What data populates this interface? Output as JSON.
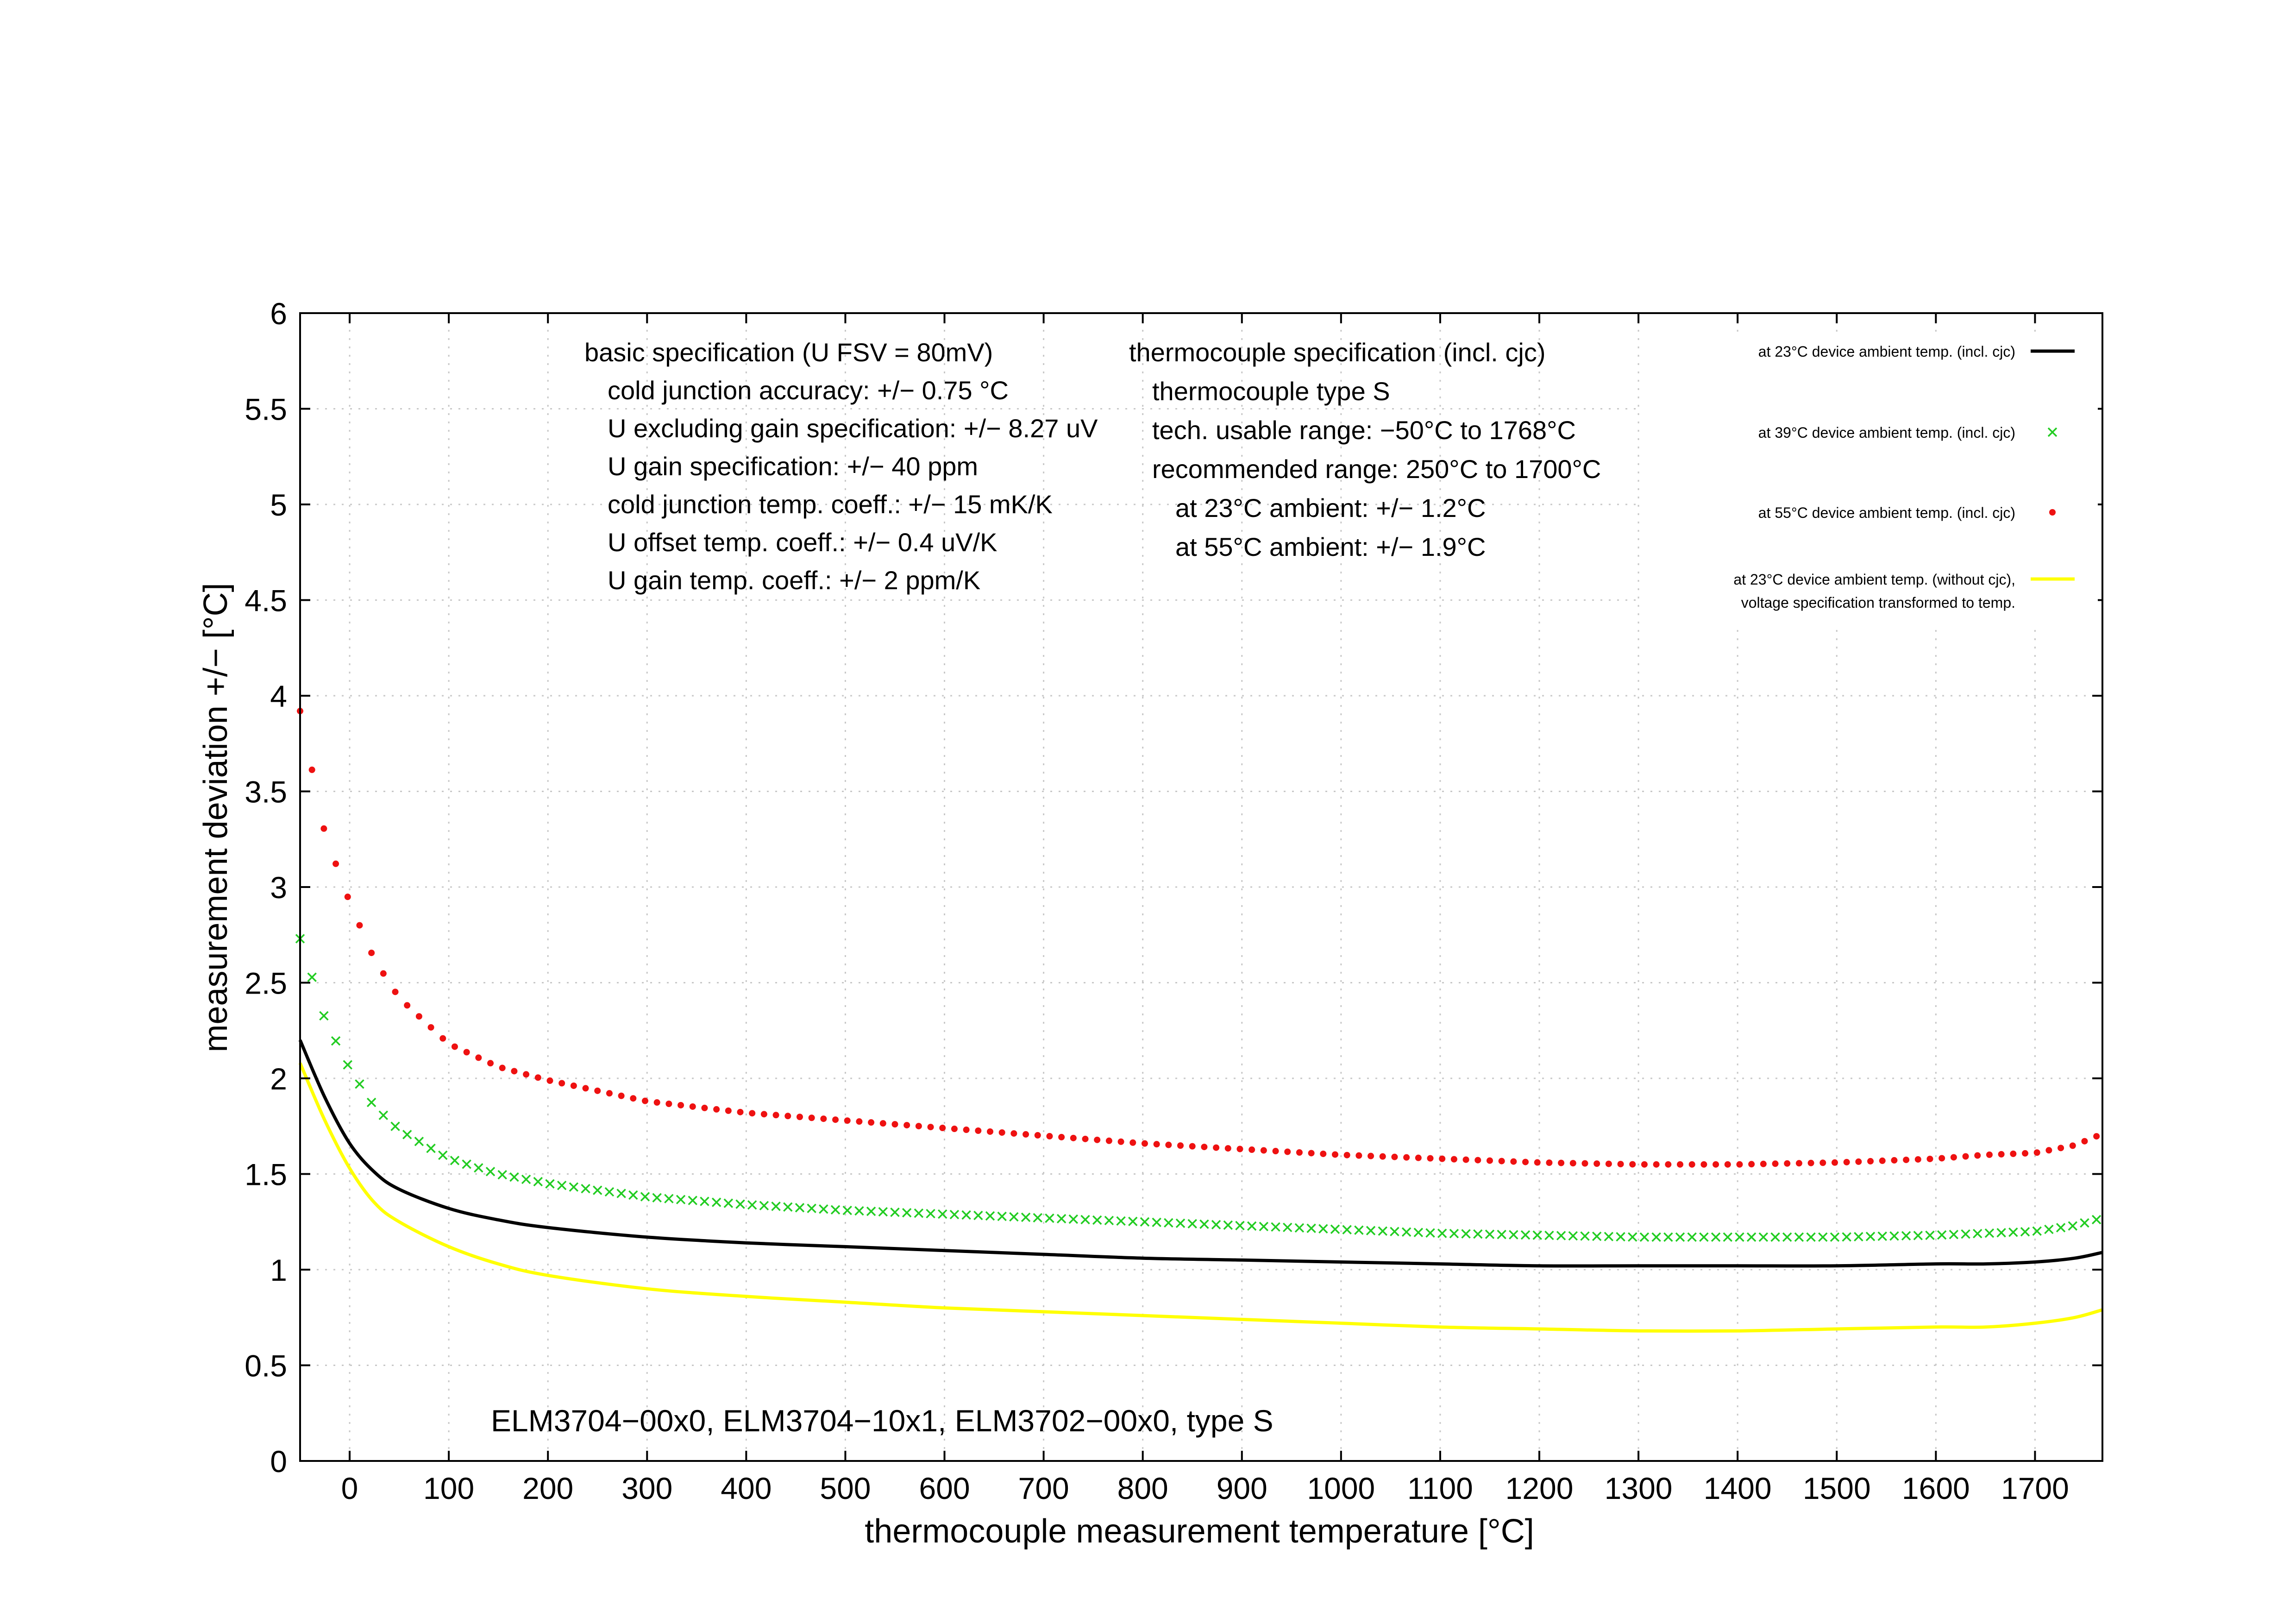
{
  "chart_data": {
    "type": "line",
    "xlabel": "thermocouple measurement temperature [°C]",
    "ylabel": "measurement deviation +/− [°C]",
    "xlim": [
      -50,
      1768
    ],
    "ylim": [
      0,
      6
    ],
    "xticks": [
      0,
      100,
      200,
      300,
      400,
      500,
      600,
      700,
      800,
      900,
      1000,
      1100,
      1200,
      1300,
      1400,
      1500,
      1600,
      1700
    ],
    "yticks": [
      0,
      0.5,
      1,
      1.5,
      2,
      2.5,
      3,
      3.5,
      4,
      4.5,
      5,
      5.5,
      6
    ],
    "ytick_labels": [
      "0",
      "0.5",
      "1",
      "1.5",
      "2",
      "2.5",
      "3",
      "3.5",
      "4",
      "4.5",
      "5",
      "5.5",
      "6"
    ],
    "grid": true,
    "legend_position": "top-right",
    "x": [
      -50,
      -25,
      0,
      25,
      50,
      100,
      150,
      200,
      300,
      400,
      500,
      600,
      700,
      800,
      900,
      1000,
      1100,
      1200,
      1300,
      1400,
      1500,
      1600,
      1650,
      1700,
      1740,
      1768
    ],
    "series": [
      {
        "name": "at 23°C device ambient temp. (incl. cjc)",
        "style": "line",
        "color": "#000000",
        "values": [
          2.2,
          1.9,
          1.66,
          1.51,
          1.42,
          1.32,
          1.26,
          1.22,
          1.17,
          1.14,
          1.12,
          1.1,
          1.08,
          1.06,
          1.05,
          1.04,
          1.03,
          1.02,
          1.02,
          1.02,
          1.02,
          1.03,
          1.03,
          1.04,
          1.06,
          1.09
        ]
      },
      {
        "name": "at 39°C device ambient temp. (incl. cjc)",
        "style": "cross",
        "color": "#22cc22",
        "values": [
          2.73,
          2.31,
          2.05,
          1.85,
          1.73,
          1.58,
          1.5,
          1.45,
          1.38,
          1.34,
          1.31,
          1.29,
          1.27,
          1.25,
          1.23,
          1.21,
          1.19,
          1.18,
          1.17,
          1.17,
          1.17,
          1.18,
          1.19,
          1.2,
          1.23,
          1.27
        ]
      },
      {
        "name": "at 55°C device ambient temp. (incl. cjc)",
        "style": "dot",
        "color": "#ee1111",
        "values": [
          3.92,
          3.28,
          2.92,
          2.62,
          2.42,
          2.18,
          2.06,
          1.99,
          1.88,
          1.82,
          1.78,
          1.74,
          1.7,
          1.66,
          1.63,
          1.6,
          1.58,
          1.56,
          1.55,
          1.55,
          1.56,
          1.58,
          1.6,
          1.61,
          1.65,
          1.71
        ]
      },
      {
        "name": "at 23°C device ambient temp. (without cjc), voltage specification transformed to temp.",
        "style": "line",
        "color": "#ffff00",
        "values": [
          2.08,
          1.78,
          1.53,
          1.35,
          1.25,
          1.12,
          1.03,
          0.97,
          0.9,
          0.86,
          0.83,
          0.8,
          0.78,
          0.76,
          0.74,
          0.72,
          0.7,
          0.69,
          0.68,
          0.68,
          0.69,
          0.7,
          0.7,
          0.72,
          0.75,
          0.79
        ]
      }
    ],
    "legend": [
      {
        "line1": "at 23°C device ambient temp. (incl. cjc)",
        "line2": ""
      },
      {
        "line1": "at 39°C device ambient temp. (incl. cjc)",
        "line2": ""
      },
      {
        "line1": "at 55°C device ambient temp. (incl. cjc)",
        "line2": ""
      },
      {
        "line1": "at 23°C device ambient temp. (without cjc),",
        "line2": "voltage specification transformed to temp."
      }
    ],
    "basic_spec": [
      "basic specification (U FSV = 80mV)",
      "cold junction accuracy: +/− 0.75 °C",
      "U excluding gain specification: +/− 8.27 uV",
      "U gain specification: +/− 40 ppm",
      "cold junction temp. coeff.: +/− 15 mK/K",
      "U offset temp. coeff.: +/− 0.4 uV/K",
      "U gain temp. coeff.: +/− 2 ppm/K"
    ],
    "tc_spec": [
      "thermocouple specification (incl. cjc)",
      "thermocouple type S",
      "tech. usable range: −50°C to 1768°C",
      "recommended range: 250°C to 1700°C",
      "at 23°C ambient: +/− 1.2°C",
      "at 55°C ambient: +/− 1.9°C"
    ],
    "annotation": "ELM3704−00x0, ELM3704−10x1, ELM3702−00x0, type S"
  }
}
